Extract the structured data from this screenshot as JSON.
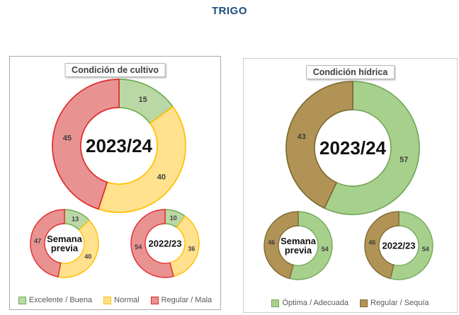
{
  "page_title": "TRIGO",
  "title_color": "#1b4e79",
  "chart_data": [
    {
      "type": "pie",
      "panel_title": "Condición de cultivo",
      "categories": [
        "Excelente / Buena",
        "Normal",
        "Regular / Mala"
      ],
      "colors": [
        {
          "fill": "#bad8a5",
          "border": "#6fac4d"
        },
        {
          "fill": "#ffe18e",
          "border": "#ffc000"
        },
        {
          "fill": "#e99292",
          "border": "#e02a2a"
        }
      ],
      "legend_position": "bottom",
      "donuts": [
        {
          "size": "large",
          "center_label": [
            "2023/24"
          ],
          "values": [
            15,
            40,
            45
          ]
        },
        {
          "size": "small",
          "center_label": [
            "Semana",
            "previa"
          ],
          "values": [
            13,
            40,
            47
          ]
        },
        {
          "size": "small",
          "center_label": [
            "2022/23"
          ],
          "values": [
            10,
            36,
            54
          ]
        }
      ]
    },
    {
      "type": "pie",
      "panel_title": "Condición hídrica",
      "categories": [
        "Óptima / Adecuada",
        "Regular / Sequía"
      ],
      "colors": [
        {
          "fill": "#a8d08d",
          "border": "#74a85a"
        },
        {
          "fill": "#b29356",
          "border": "#7d6b33"
        }
      ],
      "legend_position": "bottom",
      "donuts": [
        {
          "size": "large",
          "center_label": [
            "2023/24"
          ],
          "values": [
            57,
            43
          ]
        },
        {
          "size": "small",
          "center_label": [
            "Semana",
            "previa"
          ],
          "values": [
            54,
            46
          ]
        },
        {
          "size": "small",
          "center_label": [
            "2022/23"
          ],
          "values": [
            54,
            46
          ]
        }
      ]
    }
  ]
}
